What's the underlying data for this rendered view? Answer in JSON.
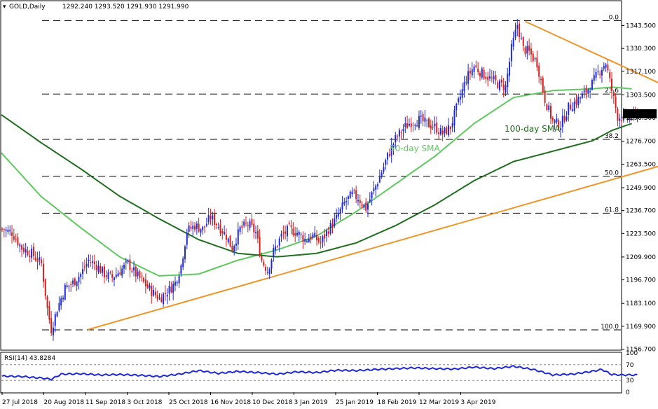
{
  "header": {
    "symbol": "GOLD,Daily",
    "ohlc": "1292.240 1293.520 1291.930 1291.990"
  },
  "colors": {
    "bull": "#1f2ad6",
    "bear": "#d61f1f",
    "sma50": "#5ec95e",
    "sma100": "#1f6e1f",
    "trend": "#f0952a",
    "fib": "#000000",
    "rsi": "#1f2ad6",
    "price_tag_bg": "#000000"
  },
  "chart_data": [
    {
      "type": "candlestick",
      "title": "GOLD,Daily",
      "ylim": [
        1156.5,
        1351.0
      ],
      "y_ticks": [
        "1343.500",
        "1330.300",
        "1317.100",
        "1303.500",
        "1290.300",
        "1276.700",
        "1263.500",
        "1249.900",
        "1236.700",
        "1223.500",
        "1209.900",
        "1196.700",
        "1183.100",
        "1169.900",
        "1156.700"
      ],
      "x_ticks": [
        "27 Jul 2018",
        "20 Aug 2018",
        "11 Sep 2018",
        "3 Oct 2018",
        "25 Oct 2018",
        "16 Nov 2018",
        "10 Dec 2018",
        "3 Jan 2019",
        "25 Jan 2019",
        "18 Feb 2019",
        "12 Mar 2019",
        "3 Apr 2019"
      ],
      "last_price": "1291.990",
      "fibonacci_levels": [
        {
          "label": "0.0",
          "value": 1346.4
        },
        {
          "label": "23.6",
          "value": 1304.0
        },
        {
          "label": "38.2",
          "value": 1277.8
        },
        {
          "label": "50.0",
          "value": 1256.6
        },
        {
          "label": "61.8",
          "value": 1235.2
        },
        {
          "label": "100.0",
          "value": 1167.8
        }
      ],
      "close_path": [
        [
          0,
          1226
        ],
        [
          5,
          1224
        ],
        [
          10,
          1215
        ],
        [
          15,
          1212
        ],
        [
          20,
          1206
        ],
        [
          23,
          1180
        ],
        [
          25,
          1168
        ],
        [
          28,
          1180
        ],
        [
          32,
          1192
        ],
        [
          36,
          1195
        ],
        [
          40,
          1200
        ],
        [
          44,
          1208
        ],
        [
          48,
          1205
        ],
        [
          52,
          1200
        ],
        [
          56,
          1198
        ],
        [
          60,
          1202
        ],
        [
          64,
          1206
        ],
        [
          68,
          1200
        ],
        [
          72,
          1195
        ],
        [
          76,
          1190
        ],
        [
          80,
          1186
        ],
        [
          84,
          1190
        ],
        [
          88,
          1195
        ],
        [
          91,
          1205
        ],
        [
          94,
          1225
        ],
        [
          98,
          1228
        ],
        [
          102,
          1226
        ],
        [
          106,
          1233
        ],
        [
          110,
          1228
        ],
        [
          114,
          1222
        ],
        [
          117,
          1215
        ],
        [
          121,
          1226
        ],
        [
          125,
          1229
        ],
        [
          129,
          1224
        ],
        [
          132,
          1208
        ],
        [
          135,
          1202
        ],
        [
          138,
          1213
        ],
        [
          142,
          1222
        ],
        [
          146,
          1226
        ],
        [
          150,
          1224
        ],
        [
          154,
          1220
        ],
        [
          158,
          1222
        ],
        [
          162,
          1218
        ],
        [
          166,
          1226
        ],
        [
          170,
          1232
        ],
        [
          174,
          1241
        ],
        [
          178,
          1246
        ],
        [
          181,
          1244
        ],
        [
          185,
          1238
        ],
        [
          188,
          1246
        ],
        [
          192,
          1256
        ],
        [
          196,
          1268
        ],
        [
          200,
          1278
        ],
        [
          204,
          1284
        ],
        [
          208,
          1288
        ],
        [
          212,
          1289
        ],
        [
          216,
          1287
        ],
        [
          220,
          1285
        ],
        [
          224,
          1281
        ],
        [
          228,
          1285
        ],
        [
          232,
          1299
        ],
        [
          236,
          1313
        ],
        [
          240,
          1320
        ],
        [
          244,
          1316
        ],
        [
          248,
          1313
        ],
        [
          252,
          1310
        ],
        [
          256,
          1308
        ],
        [
          259,
          1330
        ],
        [
          262,
          1344
        ],
        [
          265,
          1330
        ],
        [
          268,
          1328
        ],
        [
          272,
          1322
        ],
        [
          276,
          1301
        ],
        [
          280,
          1288
        ],
        [
          284,
          1286
        ],
        [
          288,
          1296
        ],
        [
          292,
          1300
        ],
        [
          296,
          1304
        ],
        [
          300,
          1310
        ],
        [
          304,
          1318
        ],
        [
          307,
          1322
        ],
        [
          310,
          1306
        ],
        [
          313,
          1291
        ],
        [
          316,
          1290
        ],
        [
          320,
          1291
        ],
        [
          323,
          1292
        ]
      ],
      "series": [
        {
          "name": "50-day SMA",
          "values": [
            [
              0,
              1270
            ],
            [
              20,
              1245
            ],
            [
              40,
              1227
            ],
            [
              60,
              1210
            ],
            [
              80,
              1199
            ],
            [
              100,
              1200
            ],
            [
              120,
              1208
            ],
            [
              140,
              1214
            ],
            [
              160,
              1222
            ],
            [
              180,
              1236
            ],
            [
              200,
              1252
            ],
            [
              220,
              1268
            ],
            [
              240,
              1287
            ],
            [
              260,
              1302
            ],
            [
              280,
              1306
            ],
            [
              300,
              1307
            ],
            [
              310,
              1308
            ],
            [
              320,
              1307
            ]
          ]
        },
        {
          "name": "100-day SMA",
          "values": [
            [
              0,
              1292
            ],
            [
              20,
              1276
            ],
            [
              40,
              1261
            ],
            [
              60,
              1245
            ],
            [
              80,
              1232
            ],
            [
              100,
              1220
            ],
            [
              120,
              1212
            ],
            [
              140,
              1210
            ],
            [
              160,
              1212
            ],
            [
              180,
              1218
            ],
            [
              200,
              1228
            ],
            [
              220,
              1240
            ],
            [
              240,
              1254
            ],
            [
              260,
              1265
            ],
            [
              280,
              1271
            ],
            [
              300,
              1277
            ],
            [
              310,
              1283
            ],
            [
              320,
              1287
            ]
          ]
        }
      ],
      "trendlines": [
        {
          "name": "support",
          "from": [
            25,
            1168
          ],
          "to": [
            360,
            1270
          ]
        },
        {
          "name": "resistance",
          "from": [
            262,
            1346
          ],
          "to": [
            360,
            1298
          ]
        }
      ],
      "annotations": [
        "100-day SMA",
        "50-day SMA"
      ]
    },
    {
      "type": "line",
      "title": "RSI(14) 43.8284",
      "ylim": [
        0,
        100
      ],
      "y_ticks": [
        "100",
        "70",
        "30",
        "0"
      ],
      "hlines": [
        70,
        30
      ],
      "values": [
        [
          0,
          41
        ],
        [
          10,
          40
        ],
        [
          20,
          36
        ],
        [
          25,
          33
        ],
        [
          30,
          46
        ],
        [
          40,
          47
        ],
        [
          50,
          44
        ],
        [
          60,
          45
        ],
        [
          70,
          43
        ],
        [
          80,
          40
        ],
        [
          90,
          46
        ],
        [
          100,
          55
        ],
        [
          110,
          48
        ],
        [
          120,
          53
        ],
        [
          130,
          50
        ],
        [
          140,
          46
        ],
        [
          150,
          52
        ],
        [
          160,
          50
        ],
        [
          170,
          56
        ],
        [
          180,
          55
        ],
        [
          190,
          58
        ],
        [
          200,
          60
        ],
        [
          210,
          62
        ],
        [
          220,
          60
        ],
        [
          230,
          59
        ],
        [
          240,
          64
        ],
        [
          250,
          60
        ],
        [
          260,
          66
        ],
        [
          270,
          58
        ],
        [
          280,
          44
        ],
        [
          290,
          46
        ],
        [
          300,
          53
        ],
        [
          305,
          58
        ],
        [
          310,
          45
        ],
        [
          316,
          44
        ],
        [
          323,
          44
        ]
      ]
    }
  ]
}
